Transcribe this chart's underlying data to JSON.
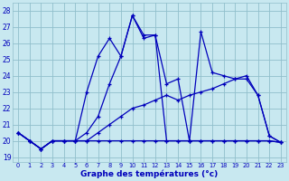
{
  "background_color": "#c8e8f0",
  "grid_color": "#90bfcc",
  "line_color": "#0000bb",
  "xlabel": "Graphe des températures (°c)",
  "xlim": [
    -0.5,
    23.5
  ],
  "ylim": [
    18.7,
    28.5
  ],
  "yticks": [
    19,
    20,
    21,
    22,
    23,
    24,
    25,
    26,
    27,
    28
  ],
  "xticks": [
    0,
    1,
    2,
    3,
    4,
    5,
    6,
    7,
    8,
    9,
    10,
    11,
    12,
    13,
    14,
    15,
    16,
    17,
    18,
    19,
    20,
    21,
    22,
    23
  ],
  "series": [
    {
      "x": [
        0,
        1,
        2,
        3,
        4,
        5,
        6,
        7,
        8,
        9,
        10,
        11,
        12,
        13,
        14,
        15,
        16,
        17,
        18,
        19,
        20,
        21,
        22,
        23
      ],
      "y": [
        20.5,
        20.0,
        19.5,
        20.0,
        20.0,
        20.0,
        20.0,
        20.0,
        20.0,
        20.0,
        20.0,
        20.0,
        20.0,
        20.0,
        20.0,
        20.0,
        20.0,
        20.0,
        20.0,
        20.0,
        20.0,
        20.0,
        20.0,
        19.9
      ]
    },
    {
      "x": [
        0,
        1,
        2,
        3,
        4,
        5,
        6,
        7,
        8,
        9,
        10,
        11,
        12,
        13,
        14,
        15,
        16,
        17,
        18,
        19,
        20,
        21,
        22,
        23
      ],
      "y": [
        20.5,
        20.0,
        19.5,
        20.0,
        20.0,
        20.0,
        20.0,
        20.5,
        21.0,
        21.5,
        22.0,
        22.2,
        22.5,
        22.8,
        22.5,
        22.8,
        23.0,
        23.2,
        23.5,
        23.8,
        23.8,
        22.8,
        20.3,
        19.9
      ]
    },
    {
      "x": [
        0,
        1,
        2,
        3,
        4,
        5,
        6,
        7,
        8,
        9,
        10,
        11,
        12,
        13,
        14,
        15,
        16,
        17,
        18,
        19,
        20,
        21,
        22,
        23
      ],
      "y": [
        20.5,
        20.0,
        19.5,
        20.0,
        20.0,
        20.0,
        20.5,
        21.5,
        23.5,
        25.2,
        27.7,
        26.3,
        26.5,
        20.0,
        20.0,
        20.0,
        20.0,
        20.0,
        20.0,
        20.0,
        20.0,
        20.0,
        20.0,
        19.9
      ]
    },
    {
      "x": [
        0,
        1,
        2,
        3,
        4,
        5,
        6,
        7,
        8,
        9,
        10,
        11,
        12,
        13,
        14,
        15,
        16,
        17,
        18,
        19,
        20,
        21,
        22,
        23
      ],
      "y": [
        20.5,
        20.0,
        19.5,
        20.0,
        20.0,
        20.0,
        23.0,
        25.2,
        26.3,
        25.2,
        27.7,
        26.5,
        26.5,
        23.5,
        23.8,
        20.0,
        26.7,
        24.2,
        24.0,
        23.8,
        24.0,
        22.8,
        20.3,
        19.9
      ]
    }
  ]
}
